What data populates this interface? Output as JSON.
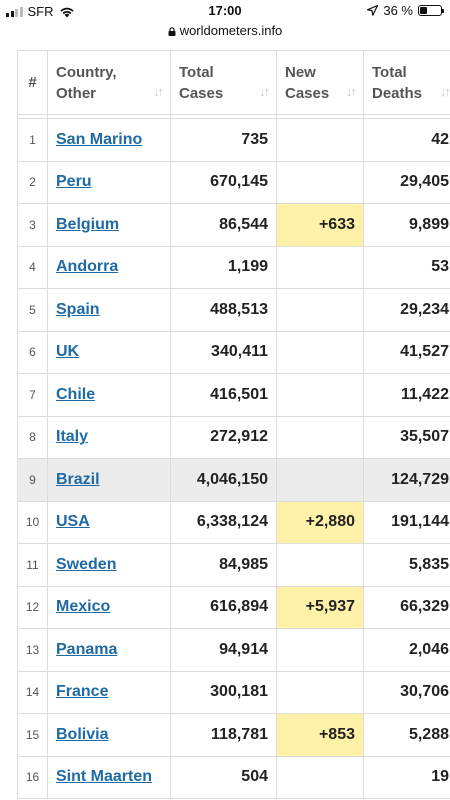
{
  "status_bar": {
    "carrier": "SFR",
    "time": "17:00",
    "battery": "36 %"
  },
  "browser": {
    "url": "worldometers.info"
  },
  "table": {
    "headers": {
      "rank": "#",
      "country_line1": "Country,",
      "country_line2": "Other",
      "total_cases_line1": "Total",
      "total_cases_line2": "Cases",
      "new_cases_line1": "New",
      "new_cases_line2": "Cases",
      "total_deaths_line1": "Total",
      "total_deaths_line2": "Deaths"
    },
    "rows": [
      {
        "rank": "1",
        "country": "San Marino",
        "total_cases": "735",
        "new_cases": "",
        "total_deaths": "42"
      },
      {
        "rank": "2",
        "country": "Peru",
        "total_cases": "670,145",
        "new_cases": "",
        "total_deaths": "29,405"
      },
      {
        "rank": "3",
        "country": "Belgium",
        "total_cases": "86,544",
        "new_cases": "+633",
        "total_deaths": "9,899"
      },
      {
        "rank": "4",
        "country": "Andorra",
        "total_cases": "1,199",
        "new_cases": "",
        "total_deaths": "53"
      },
      {
        "rank": "5",
        "country": "Spain",
        "total_cases": "488,513",
        "new_cases": "",
        "total_deaths": "29,234"
      },
      {
        "rank": "6",
        "country": "UK",
        "total_cases": "340,411",
        "new_cases": "",
        "total_deaths": "41,527"
      },
      {
        "rank": "7",
        "country": "Chile",
        "total_cases": "416,501",
        "new_cases": "",
        "total_deaths": "11,422"
      },
      {
        "rank": "8",
        "country": "Italy",
        "total_cases": "272,912",
        "new_cases": "",
        "total_deaths": "35,507"
      },
      {
        "rank": "9",
        "country": "Brazil",
        "total_cases": "4,046,150",
        "new_cases": "",
        "total_deaths": "124,729"
      },
      {
        "rank": "10",
        "country": "USA",
        "total_cases": "6,338,124",
        "new_cases": "+2,880",
        "total_deaths": "191,144"
      },
      {
        "rank": "11",
        "country": "Sweden",
        "total_cases": "84,985",
        "new_cases": "",
        "total_deaths": "5,835"
      },
      {
        "rank": "12",
        "country": "Mexico",
        "total_cases": "616,894",
        "new_cases": "+5,937",
        "total_deaths": "66,329"
      },
      {
        "rank": "13",
        "country": "Panama",
        "total_cases": "94,914",
        "new_cases": "",
        "total_deaths": "2,046"
      },
      {
        "rank": "14",
        "country": "France",
        "total_cases": "300,181",
        "new_cases": "",
        "total_deaths": "30,706"
      },
      {
        "rank": "15",
        "country": "Bolivia",
        "total_cases": "118,781",
        "new_cases": "+853",
        "total_deaths": "5,288"
      },
      {
        "rank": "16",
        "country": "Sint Maarten",
        "total_cases": "504",
        "new_cases": "",
        "total_deaths": "19"
      }
    ]
  },
  "colors": {
    "link": "#1f6aa5",
    "new_cases_highlight": "#fff2a8",
    "highlighted_row": "#ececec"
  },
  "icons": [
    "cellular-signal-icon",
    "wifi-icon",
    "lock-icon",
    "location-arrow-icon",
    "battery-icon",
    "sort-icon"
  ]
}
